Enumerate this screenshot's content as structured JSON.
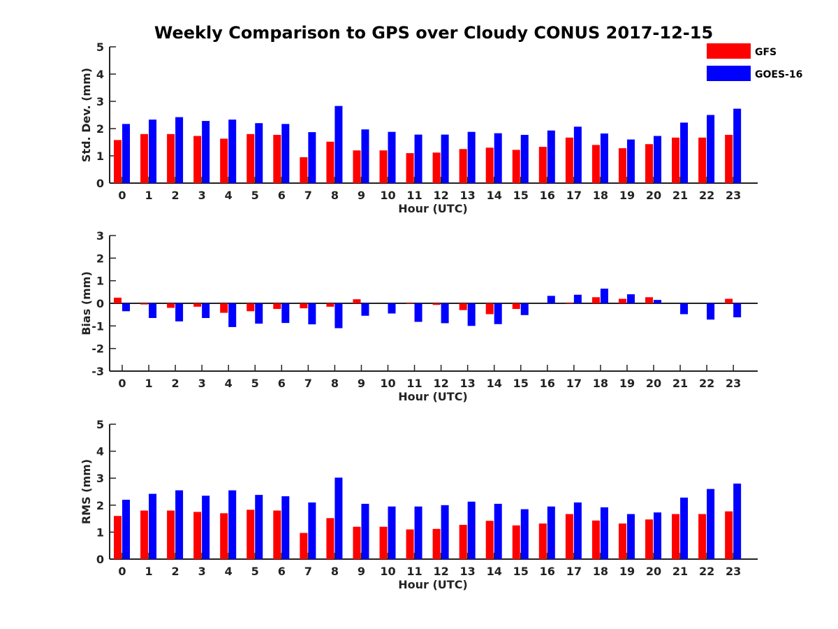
{
  "figure_title": "Weekly Comparison to GPS over Cloudy CONUS 2017-12-15",
  "legend": [
    {
      "label": "GFS",
      "color": "#ff0000"
    },
    {
      "label": "GOES-16",
      "color": "#0000ff"
    }
  ],
  "chart_data": [
    {
      "type": "bar",
      "xlabel": "Hour (UTC)",
      "ylabel": "Std. Dev. (mm)",
      "ylim": [
        0,
        5
      ],
      "yticks": [
        0,
        1,
        2,
        3,
        4,
        5
      ],
      "categories": [
        "0",
        "1",
        "2",
        "3",
        "4",
        "5",
        "6",
        "7",
        "8",
        "9",
        "10",
        "11",
        "12",
        "13",
        "14",
        "15",
        "16",
        "17",
        "18",
        "19",
        "20",
        "21",
        "22",
        "23"
      ],
      "series": [
        {
          "name": "GFS",
          "color": "#ff0000",
          "values": [
            1.58,
            1.8,
            1.8,
            1.73,
            1.63,
            1.8,
            1.77,
            0.95,
            1.52,
            1.2,
            1.2,
            1.1,
            1.12,
            1.25,
            1.3,
            1.22,
            1.33,
            1.67,
            1.4,
            1.28,
            1.43,
            1.67,
            1.67,
            1.77
          ]
        },
        {
          "name": "GOES-16",
          "color": "#0000ff",
          "values": [
            2.17,
            2.33,
            2.42,
            2.28,
            2.33,
            2.2,
            2.17,
            1.87,
            2.83,
            1.97,
            1.88,
            1.78,
            1.78,
            1.88,
            1.83,
            1.77,
            1.93,
            2.07,
            1.82,
            1.6,
            1.73,
            2.22,
            2.5,
            2.73
          ]
        }
      ]
    },
    {
      "type": "bar",
      "xlabel": "Hour (UTC)",
      "ylabel": "Bias (mm)",
      "ylim": [
        -3,
        3
      ],
      "yticks": [
        -3,
        -2,
        -1,
        0,
        1,
        2,
        3
      ],
      "zero_line": true,
      "categories": [
        "0",
        "1",
        "2",
        "3",
        "4",
        "5",
        "6",
        "7",
        "8",
        "9",
        "10",
        "11",
        "12",
        "13",
        "14",
        "15",
        "16",
        "17",
        "18",
        "19",
        "20",
        "21",
        "22",
        "23"
      ],
      "series": [
        {
          "name": "GFS",
          "color": "#ff0000",
          "values": [
            0.25,
            -0.05,
            -0.2,
            -0.15,
            -0.42,
            -0.35,
            -0.25,
            -0.22,
            -0.15,
            0.18,
            0.0,
            -0.03,
            -0.07,
            -0.3,
            -0.48,
            -0.25,
            0.0,
            -0.03,
            0.27,
            0.2,
            0.27,
            0.0,
            0.0,
            0.2
          ]
        },
        {
          "name": "GOES-16",
          "color": "#0000ff",
          "values": [
            -0.35,
            -0.65,
            -0.8,
            -0.65,
            -1.05,
            -0.9,
            -0.87,
            -0.93,
            -1.1,
            -0.55,
            -0.45,
            -0.82,
            -0.88,
            -1.0,
            -0.92,
            -0.52,
            0.33,
            0.38,
            0.65,
            0.4,
            0.15,
            -0.48,
            -0.72,
            -0.62
          ]
        }
      ]
    },
    {
      "type": "bar",
      "xlabel": "Hour (UTC)",
      "ylabel": "RMS (mm)",
      "ylim": [
        0,
        5
      ],
      "yticks": [
        0,
        1,
        2,
        3,
        4,
        5
      ],
      "categories": [
        "0",
        "1",
        "2",
        "3",
        "4",
        "5",
        "6",
        "7",
        "8",
        "9",
        "10",
        "11",
        "12",
        "13",
        "14",
        "15",
        "16",
        "17",
        "18",
        "19",
        "20",
        "21",
        "22",
        "23"
      ],
      "series": [
        {
          "name": "GFS",
          "color": "#ff0000",
          "values": [
            1.6,
            1.8,
            1.8,
            1.75,
            1.7,
            1.83,
            1.8,
            0.97,
            1.52,
            1.2,
            1.2,
            1.1,
            1.12,
            1.27,
            1.42,
            1.25,
            1.32,
            1.67,
            1.43,
            1.32,
            1.47,
            1.67,
            1.67,
            1.77
          ]
        },
        {
          "name": "GOES-16",
          "color": "#0000ff",
          "values": [
            2.2,
            2.42,
            2.55,
            2.35,
            2.55,
            2.38,
            2.33,
            2.1,
            3.02,
            2.05,
            1.95,
            1.95,
            2.0,
            2.13,
            2.05,
            1.85,
            1.95,
            2.1,
            1.92,
            1.67,
            1.73,
            2.28,
            2.6,
            2.8
          ]
        }
      ]
    }
  ]
}
